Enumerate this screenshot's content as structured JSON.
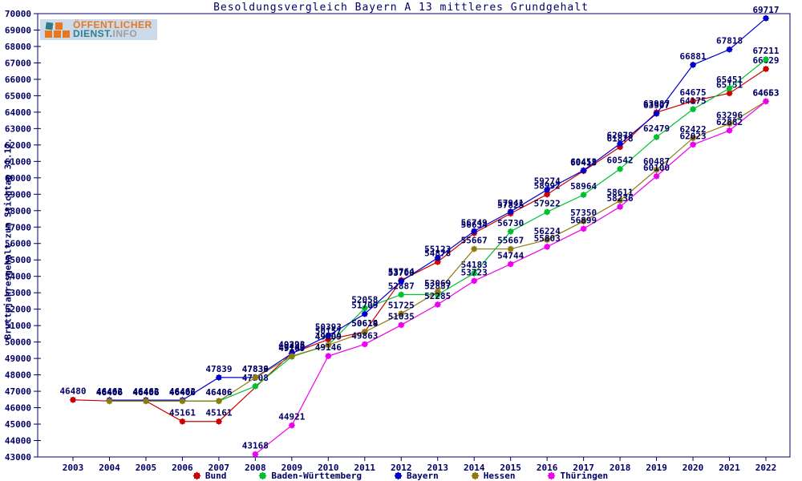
{
  "logo": {
    "line1": "ÖFFENTLICHER",
    "line2_strong": "DIENST.",
    "line2_muted": "INFO",
    "orange": "#e87820",
    "teal": "#2e7d8c",
    "background": "#ccd9e8"
  },
  "chart_data": {
    "type": "line",
    "title": "Besoldungsvergleich Bayern A 13 mittleres Grundgehalt",
    "ylabel": "Bruttojahresgehalt zum Stichtag 31.12.",
    "xlabel": "",
    "x": [
      2003,
      2004,
      2005,
      2006,
      2007,
      2008,
      2009,
      2010,
      2011,
      2012,
      2013,
      2014,
      2015,
      2016,
      2017,
      2018,
      2019,
      2020,
      2021,
      2022
    ],
    "ylim": [
      43000,
      70000
    ],
    "ytick_step": 1000,
    "grid": false,
    "legend_position": "bottom",
    "point_labels": true,
    "axis_color": "#000066",
    "label_color": "#000066",
    "series": [
      {
        "name": "Bund",
        "color": "#cc0000",
        "values": [
          46480,
          46406,
          46406,
          45161,
          45161,
          null,
          49323,
          50157,
          50619,
          53764,
          54878,
          56634,
          57825,
          58992,
          60418,
          61878,
          63987,
          64675,
          65151,
          66629
        ]
      },
      {
        "name": "Baden-Württemberg",
        "color": "#00c030",
        "values": [
          null,
          46406,
          46406,
          46406,
          46406,
          47308,
          49109,
          49809,
          52058,
          52887,
          52887,
          54183,
          56730,
          57922,
          58964,
          60542,
          62479,
          64175,
          65451,
          67211
        ]
      },
      {
        "name": "Bayern",
        "color": "#0000cc",
        "values": [
          null,
          46462,
          46462,
          46462,
          47839,
          47839,
          49296,
          50393,
          51709,
          53700,
          55123,
          56749,
          57941,
          59274,
          60453,
          62078,
          63907,
          66881,
          67818,
          69717
        ]
      },
      {
        "name": "Hessen",
        "color": "#8f7a10",
        "values": [
          null,
          46406,
          46406,
          46406,
          46406,
          47836,
          49140,
          49809,
          50614,
          51725,
          53069,
          55667,
          55667,
          56224,
          57350,
          58611,
          60487,
          62422,
          63296,
          64663
        ]
      },
      {
        "name": "Thüringen",
        "color": "#ee00ee",
        "values": [
          null,
          null,
          null,
          null,
          null,
          43168,
          44921,
          49146,
          49863,
          51035,
          52285,
          53723,
          54744,
          55803,
          56899,
          58236,
          60100,
          62023,
          62882,
          64653
        ]
      }
    ]
  }
}
